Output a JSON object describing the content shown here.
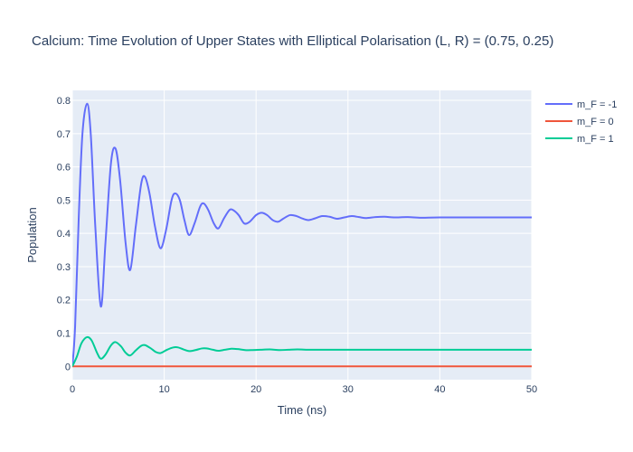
{
  "chart_data": {
    "type": "line",
    "title": "Calcium: Time Evolution of Upper States with Elliptical Polarisation (L, R) = (0.75, 0.25)",
    "xlabel": "Time (ns)",
    "ylabel": "Population",
    "xlim": [
      0,
      50
    ],
    "ylim": [
      -0.04,
      0.83
    ],
    "xticks": [
      0,
      10,
      20,
      30,
      40,
      50
    ],
    "yticks": [
      0,
      0.1,
      0.2,
      0.3,
      0.4,
      0.5,
      0.6,
      0.7,
      0.8
    ],
    "grid": true,
    "legend_position": "top-right",
    "series": [
      {
        "name": "m_F = -1",
        "color": "#636efa",
        "points": [
          [
            0,
            0
          ],
          [
            0.3,
            0.12
          ],
          [
            0.7,
            0.45
          ],
          [
            1.1,
            0.7
          ],
          [
            1.6,
            0.79
          ],
          [
            2.0,
            0.7
          ],
          [
            2.5,
            0.42
          ],
          [
            3.1,
            0.18
          ],
          [
            3.6,
            0.37
          ],
          [
            4.2,
            0.61
          ],
          [
            4.7,
            0.655
          ],
          [
            5.2,
            0.56
          ],
          [
            5.8,
            0.37
          ],
          [
            6.3,
            0.29
          ],
          [
            6.9,
            0.42
          ],
          [
            7.5,
            0.55
          ],
          [
            7.9,
            0.57
          ],
          [
            8.4,
            0.52
          ],
          [
            9.0,
            0.42
          ],
          [
            9.6,
            0.355
          ],
          [
            10.2,
            0.41
          ],
          [
            10.8,
            0.5
          ],
          [
            11.2,
            0.52
          ],
          [
            11.7,
            0.5
          ],
          [
            12.2,
            0.44
          ],
          [
            12.7,
            0.395
          ],
          [
            13.3,
            0.43
          ],
          [
            13.9,
            0.48
          ],
          [
            14.3,
            0.49
          ],
          [
            14.8,
            0.47
          ],
          [
            15.4,
            0.43
          ],
          [
            15.9,
            0.415
          ],
          [
            16.5,
            0.445
          ],
          [
            17.1,
            0.47
          ],
          [
            17.5,
            0.47
          ],
          [
            18.1,
            0.455
          ],
          [
            18.7,
            0.43
          ],
          [
            19.3,
            0.435
          ],
          [
            20.0,
            0.455
          ],
          [
            20.6,
            0.462
          ],
          [
            21.2,
            0.455
          ],
          [
            21.8,
            0.44
          ],
          [
            22.4,
            0.435
          ],
          [
            23.0,
            0.445
          ],
          [
            23.7,
            0.455
          ],
          [
            24.4,
            0.452
          ],
          [
            25.0,
            0.445
          ],
          [
            25.7,
            0.44
          ],
          [
            26.4,
            0.445
          ],
          [
            27.2,
            0.452
          ],
          [
            28.0,
            0.45
          ],
          [
            28.8,
            0.444
          ],
          [
            29.6,
            0.448
          ],
          [
            30.4,
            0.452
          ],
          [
            31.2,
            0.449
          ],
          [
            32.0,
            0.446
          ],
          [
            33.0,
            0.449
          ],
          [
            34.0,
            0.45
          ],
          [
            35.0,
            0.448
          ],
          [
            36.5,
            0.449
          ],
          [
            38.0,
            0.447
          ],
          [
            40.0,
            0.448
          ],
          [
            45.0,
            0.448
          ],
          [
            50.0,
            0.448
          ]
        ]
      },
      {
        "name": "m_F = 0",
        "color": "#ef553b",
        "points": [
          [
            0,
            0
          ],
          [
            50,
            0
          ]
        ]
      },
      {
        "name": "m_F = 1",
        "color": "#00cc96",
        "points": [
          [
            0,
            0
          ],
          [
            0.5,
            0.03
          ],
          [
            1.0,
            0.07
          ],
          [
            1.6,
            0.088
          ],
          [
            2.1,
            0.078
          ],
          [
            2.7,
            0.04
          ],
          [
            3.1,
            0.023
          ],
          [
            3.6,
            0.035
          ],
          [
            4.2,
            0.063
          ],
          [
            4.7,
            0.073
          ],
          [
            5.3,
            0.06
          ],
          [
            5.8,
            0.041
          ],
          [
            6.3,
            0.033
          ],
          [
            6.9,
            0.048
          ],
          [
            7.5,
            0.062
          ],
          [
            7.9,
            0.064
          ],
          [
            8.5,
            0.055
          ],
          [
            9.1,
            0.043
          ],
          [
            9.6,
            0.04
          ],
          [
            10.3,
            0.05
          ],
          [
            11.0,
            0.057
          ],
          [
            11.5,
            0.057
          ],
          [
            12.1,
            0.051
          ],
          [
            12.7,
            0.046
          ],
          [
            13.4,
            0.049
          ],
          [
            14.1,
            0.054
          ],
          [
            14.6,
            0.054
          ],
          [
            15.3,
            0.05
          ],
          [
            15.9,
            0.047
          ],
          [
            16.6,
            0.05
          ],
          [
            17.3,
            0.053
          ],
          [
            18.0,
            0.052
          ],
          [
            18.8,
            0.049
          ],
          [
            19.6,
            0.049
          ],
          [
            20.5,
            0.05
          ],
          [
            21.5,
            0.051
          ],
          [
            22.5,
            0.049
          ],
          [
            23.5,
            0.05
          ],
          [
            24.5,
            0.051
          ],
          [
            26.0,
            0.05
          ],
          [
            28.0,
            0.05
          ],
          [
            35.0,
            0.05
          ],
          [
            50.0,
            0.05
          ]
        ]
      }
    ]
  }
}
